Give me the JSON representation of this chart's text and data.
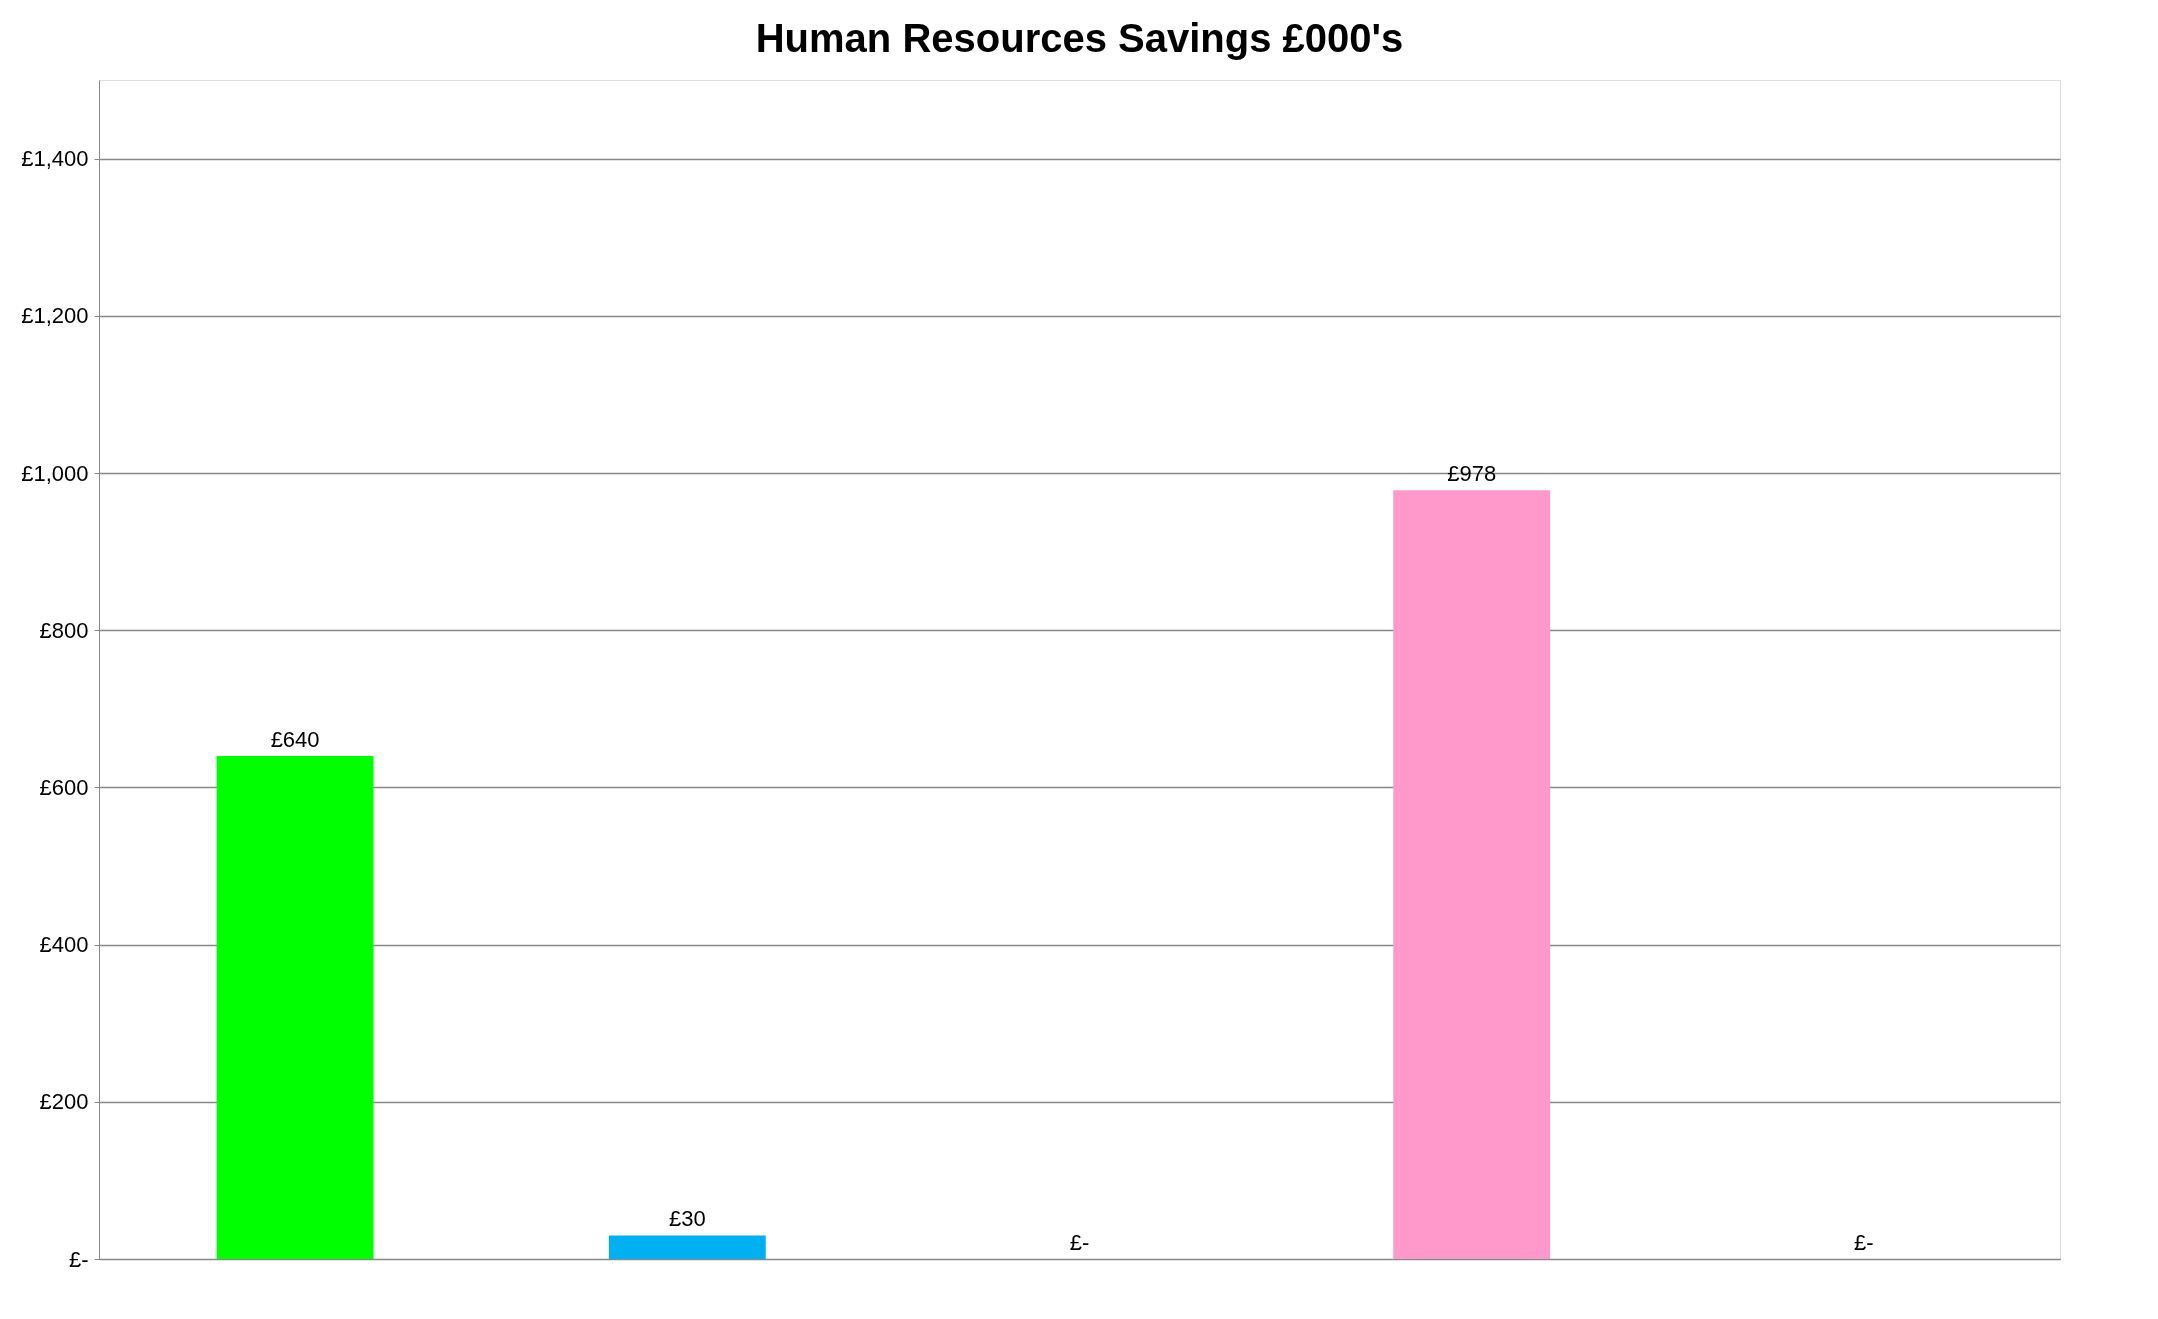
{
  "chart_data": {
    "type": "bar",
    "title": "Human Resources Savings £000's",
    "categories": [
      null,
      null,
      null,
      null,
      null
    ],
    "values": [
      640,
      30,
      0,
      978,
      0
    ],
    "colors": [
      "#00ff00",
      "#00b0f0",
      null,
      "#ff99cc",
      null
    ],
    "value_labels": [
      "£640",
      "£30",
      "£-",
      "£978",
      "£-"
    ],
    "ylim": [
      0,
      1500
    ],
    "yticks": [
      {
        "value": 0,
        "label": "£-"
      },
      {
        "value": 200,
        "label": "£200"
      },
      {
        "value": 400,
        "label": "£400"
      },
      {
        "value": 600,
        "label": "£600"
      },
      {
        "value": 800,
        "label": "£800"
      },
      {
        "value": 1000,
        "label": "£1,000"
      },
      {
        "value": 1200,
        "label": "£1,200"
      },
      {
        "value": 1400,
        "label": "£1,400"
      }
    ],
    "grid": "y",
    "tick_labels": "y"
  }
}
